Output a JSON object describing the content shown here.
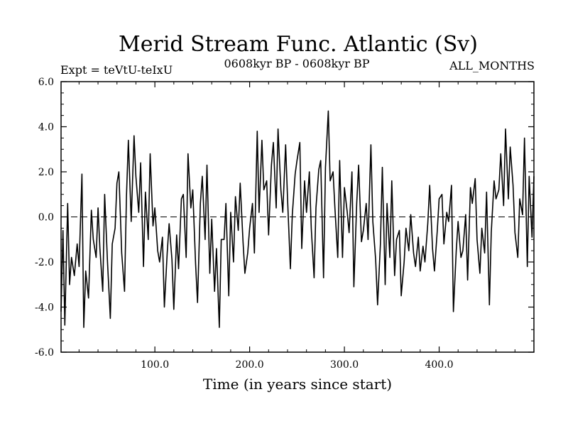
{
  "chart_data": {
    "type": "line",
    "title": "Merid Stream Func. Atlantic (Sv)",
    "subtitle_left": "Expt = teVtU-teIxU",
    "subtitle_center": "0608kyr BP - 0608kyr BP",
    "subtitle_right": "ALL_MONTHS",
    "xlabel": "Time (in years since start)",
    "ylabel": "",
    "xlim": [
      1,
      500
    ],
    "ylim": [
      -6.0,
      6.0
    ],
    "xticks": [
      100,
      200,
      300,
      400
    ],
    "xtick_labels": [
      "100.0",
      "200.0",
      "300.0",
      "400.0"
    ],
    "yticks": [
      -6,
      -4,
      -2,
      0,
      2,
      4,
      6
    ],
    "ytick_labels": [
      "-6.0",
      "-4.0",
      "-2.0",
      "0.0",
      "2.0",
      "4.0",
      "6.0"
    ],
    "reference_line": 0.0,
    "grid": false,
    "legend": "none",
    "series": [
      {
        "color": "#000000",
        "x": [
          1,
          3,
          5,
          8,
          10,
          12,
          15,
          18,
          20,
          23,
          25,
          27,
          30,
          33,
          35,
          38,
          40,
          42,
          45,
          47,
          50,
          53,
          55,
          58,
          60,
          62,
          65,
          68,
          70,
          72,
          75,
          78,
          80,
          83,
          85,
          88,
          90,
          93,
          95,
          98,
          100,
          103,
          105,
          108,
          110,
          113,
          115,
          118,
          120,
          123,
          125,
          128,
          130,
          133,
          135,
          138,
          140,
          143,
          145,
          148,
          150,
          153,
          155,
          158,
          160,
          163,
          165,
          168,
          170,
          173,
          175,
          178,
          180,
          183,
          185,
          188,
          190,
          193,
          195,
          198,
          200,
          203,
          205,
          208,
          210,
          213,
          215,
          218,
          220,
          223,
          225,
          228,
          230,
          233,
          235,
          238,
          240,
          243,
          245,
          248,
          250,
          253,
          255,
          258,
          260,
          263,
          265,
          268,
          270,
          273,
          275,
          278,
          280,
          283,
          285,
          288,
          290,
          293,
          295,
          298,
          300,
          303,
          305,
          308,
          310,
          313,
          315,
          318,
          320,
          323,
          325,
          328,
          330,
          333,
          335,
          338,
          340,
          343,
          345,
          348,
          350,
          353,
          355,
          358,
          360,
          363,
          365,
          368,
          370,
          373,
          375,
          378,
          380,
          383,
          385,
          388,
          390,
          393,
          395,
          398,
          400,
          403,
          405,
          408,
          410,
          413,
          415,
          418,
          420,
          423,
          425,
          428,
          430,
          433,
          435,
          438,
          440,
          443,
          445,
          448,
          450,
          453,
          455,
          458,
          460,
          463,
          465,
          468,
          470,
          473,
          475,
          478,
          480,
          483,
          485,
          488,
          490,
          493,
          495,
          498,
          500
        ],
        "y": [
          -4.2,
          -0.6,
          -4.8,
          0.6,
          -3.0,
          -1.8,
          -2.6,
          -1.2,
          -2.2,
          1.9,
          -4.9,
          -2.4,
          -3.6,
          0.3,
          -1.0,
          -1.8,
          0.4,
          -1.4,
          -3.3,
          1.0,
          -2.0,
          -4.5,
          -1.2,
          -0.5,
          1.5,
          2.0,
          -1.6,
          -3.3,
          0.9,
          3.4,
          -0.2,
          3.6,
          1.8,
          0.2,
          2.4,
          -2.2,
          1.1,
          -1.0,
          2.8,
          -0.4,
          0.4,
          -1.5,
          -2.0,
          -0.9,
          -4.0,
          -1.6,
          -0.3,
          -1.9,
          -4.1,
          -0.8,
          -2.3,
          0.8,
          1.0,
          -1.8,
          2.8,
          0.4,
          1.2,
          -2.1,
          -3.8,
          0.6,
          1.8,
          -1.0,
          2.3,
          -2.5,
          -0.1,
          -3.3,
          -1.4,
          -4.9,
          -1.0,
          -1.0,
          0.6,
          -3.5,
          0.2,
          -2.0,
          0.9,
          -0.6,
          1.5,
          -1.1,
          -2.5,
          -1.6,
          -0.5,
          0.6,
          -1.6,
          3.8,
          0.2,
          3.4,
          1.2,
          1.6,
          -0.8,
          2.3,
          3.3,
          0.4,
          3.9,
          1.2,
          0.2,
          3.2,
          0.8,
          -2.3,
          0.1,
          1.9,
          2.5,
          3.3,
          -1.4,
          1.6,
          0.2,
          2.0,
          -0.5,
          -2.7,
          0.4,
          2.1,
          2.5,
          -2.7,
          2.2,
          4.7,
          1.6,
          2.0,
          0.4,
          -1.8,
          2.5,
          -1.8,
          1.3,
          0.2,
          -0.7,
          2.0,
          -3.1,
          0.6,
          2.3,
          -1.1,
          -0.6,
          0.6,
          -1.0,
          3.2,
          -0.2,
          -1.9,
          -3.9,
          -1.2,
          2.2,
          -3.0,
          0.6,
          -1.8,
          1.6,
          -2.6,
          -1.0,
          -0.6,
          -3.5,
          -2.0,
          -0.5,
          -1.5,
          0.1,
          -1.6,
          -2.2,
          -0.9,
          -2.4,
          -1.3,
          -2.0,
          -0.3,
          1.4,
          -1.4,
          -2.4,
          -0.6,
          0.8,
          1.0,
          -1.2,
          0.2,
          -0.2,
          1.4,
          -4.2,
          -1.5,
          -0.2,
          -1.8,
          -1.5,
          0.1,
          -2.8,
          1.3,
          0.6,
          1.7,
          -1.0,
          -2.5,
          -0.5,
          -1.6,
          1.1,
          -3.9,
          -0.7,
          1.6,
          0.8,
          1.2,
          2.8,
          0.5,
          3.9,
          0.8,
          3.1,
          1.4,
          -0.7,
          -1.8,
          0.8,
          0.1,
          3.5,
          -2.2,
          1.8,
          -0.9,
          1.8
        ]
      }
    ]
  }
}
